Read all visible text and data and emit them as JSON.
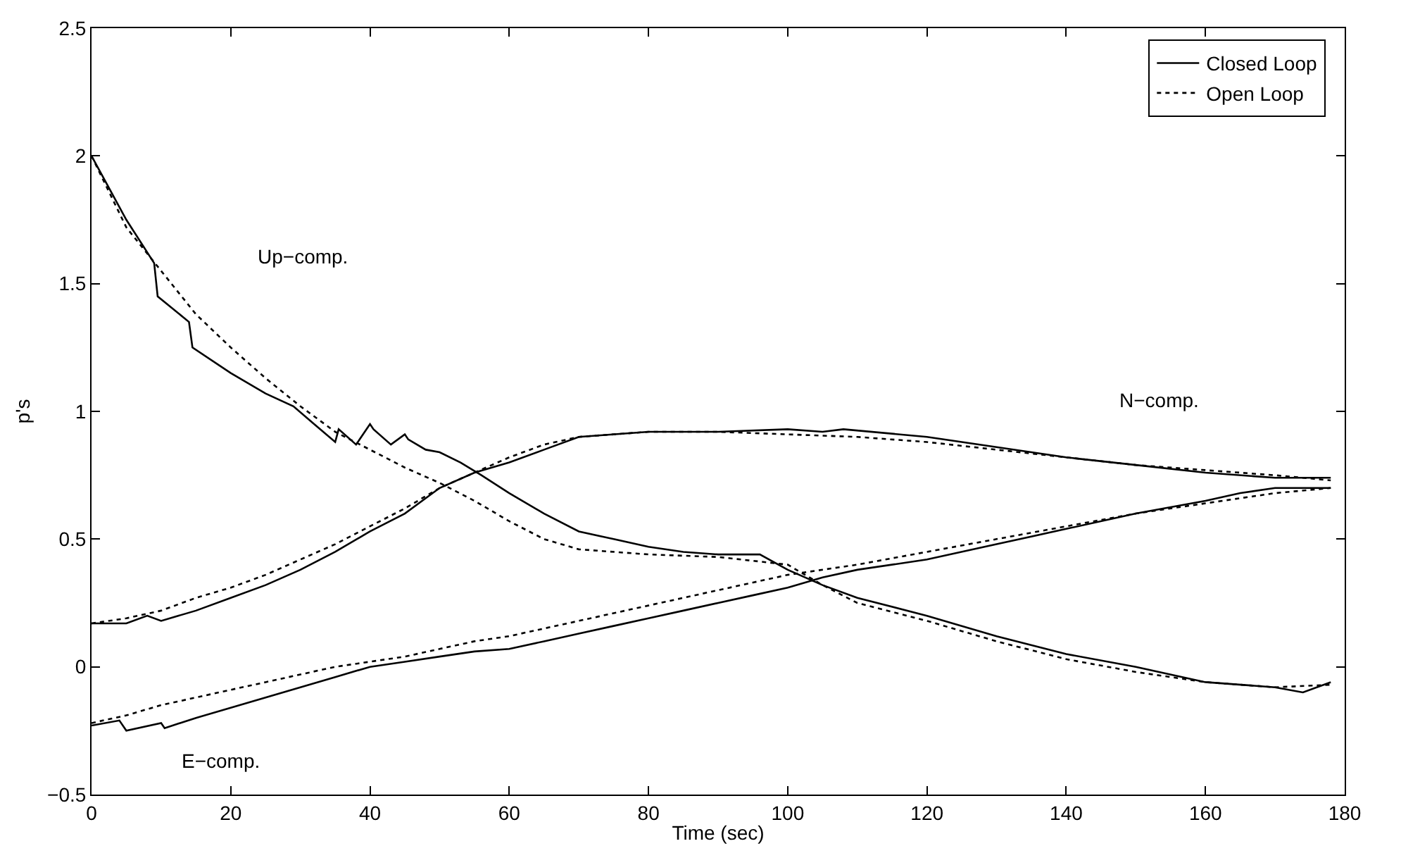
{
  "chart_data": {
    "type": "line",
    "xlabel": "Time (sec)",
    "ylabel": "p's",
    "xlim": [
      0,
      180
    ],
    "ylim": [
      -0.5,
      2.5
    ],
    "xticks": [
      0,
      20,
      40,
      60,
      80,
      100,
      120,
      140,
      160,
      180
    ],
    "yticks": [
      -0.5,
      0,
      0.5,
      1,
      1.5,
      2,
      2.5
    ],
    "legend": "top right",
    "marker": "none",
    "annotations": [
      "Up−comp.",
      "N−comp.",
      "E−comp."
    ],
    "series": [
      {
        "name": "Closed Loop",
        "color": "#000000",
        "line_style": "solid",
        "x": [
          0,
          5,
          9,
          9.5,
          14,
          14.5,
          20,
          25,
          29,
          32,
          35,
          35.5,
          38,
          40,
          40.5,
          43,
          45,
          45.5,
          48,
          50,
          53,
          56,
          60,
          65,
          70,
          75,
          80,
          85,
          90,
          96,
          100,
          105,
          110,
          120,
          130,
          140,
          150,
          160,
          170,
          174,
          178
        ],
        "values": [
          2.0,
          1.75,
          1.58,
          1.45,
          1.35,
          1.25,
          1.15,
          1.07,
          1.02,
          0.95,
          0.88,
          0.93,
          0.87,
          0.95,
          0.93,
          0.87,
          0.91,
          0.89,
          0.85,
          0.84,
          0.8,
          0.75,
          0.68,
          0.6,
          0.53,
          0.5,
          0.47,
          0.45,
          0.44,
          0.44,
          0.38,
          0.32,
          0.27,
          0.2,
          0.12,
          0.05,
          0,
          -0.06,
          -0.08,
          -0.1,
          -0.06
        ]
      },
      {
        "name": "Open Loop",
        "color": "#000000",
        "line_style": "dotted",
        "x": [
          0,
          5,
          10,
          15,
          20,
          25,
          30,
          35,
          40,
          45,
          50,
          55,
          60,
          65,
          70,
          80,
          90,
          100,
          105,
          110,
          120,
          130,
          140,
          150,
          160,
          170,
          178
        ],
        "values": [
          2.0,
          1.72,
          1.55,
          1.38,
          1.25,
          1.13,
          1.02,
          0.92,
          0.85,
          0.78,
          0.72,
          0.65,
          0.57,
          0.5,
          0.46,
          0.44,
          0.43,
          0.4,
          0.32,
          0.25,
          0.18,
          0.1,
          0.03,
          -0.02,
          -0.06,
          -0.08,
          -0.07
        ]
      },
      {
        "color": "#000000",
        "line_style": "solid",
        "x": [
          0,
          5,
          8,
          10,
          15,
          20,
          25,
          30,
          35,
          40,
          45,
          50,
          55,
          60,
          65,
          70,
          80,
          90,
          100,
          105,
          108,
          120,
          130,
          140,
          150,
          160,
          170,
          178
        ],
        "values": [
          0.17,
          0.17,
          0.2,
          0.18,
          0.22,
          0.27,
          0.32,
          0.38,
          0.45,
          0.53,
          0.6,
          0.7,
          0.76,
          0.8,
          0.85,
          0.9,
          0.92,
          0.92,
          0.93,
          0.92,
          0.93,
          0.9,
          0.86,
          0.82,
          0.79,
          0.76,
          0.74,
          0.74
        ]
      },
      {
        "color": "#000000",
        "line_style": "dotted",
        "x": [
          0,
          5,
          10,
          15,
          20,
          25,
          30,
          35,
          40,
          45,
          50,
          55,
          60,
          65,
          70,
          80,
          90,
          100,
          110,
          120,
          130,
          140,
          150,
          160,
          170,
          178
        ],
        "values": [
          0.17,
          0.19,
          0.22,
          0.27,
          0.31,
          0.36,
          0.42,
          0.48,
          0.55,
          0.62,
          0.7,
          0.76,
          0.82,
          0.87,
          0.9,
          0.92,
          0.92,
          0.91,
          0.9,
          0.88,
          0.85,
          0.82,
          0.79,
          0.77,
          0.75,
          0.73
        ]
      },
      {
        "color": "#000000",
        "line_style": "solid",
        "x": [
          0,
          4,
          5,
          10,
          10.5,
          15,
          20,
          25,
          30,
          35,
          40,
          45,
          50,
          55,
          60,
          65,
          70,
          75,
          80,
          85,
          90,
          95,
          100,
          105,
          110,
          120,
          130,
          140,
          150,
          160,
          165,
          170,
          178
        ],
        "values": [
          -0.23,
          -0.21,
          -0.25,
          -0.22,
          -0.24,
          -0.2,
          -0.16,
          -0.12,
          -0.08,
          -0.04,
          0,
          0.02,
          0.04,
          0.06,
          0.07,
          0.1,
          0.13,
          0.16,
          0.19,
          0.22,
          0.25,
          0.28,
          0.31,
          0.35,
          0.38,
          0.42,
          0.48,
          0.54,
          0.6,
          0.65,
          0.68,
          0.7,
          0.7
        ]
      },
      {
        "color": "#000000",
        "line_style": "dotted",
        "x": [
          0,
          5,
          10,
          15,
          20,
          25,
          30,
          35,
          40,
          45,
          50,
          55,
          60,
          65,
          70,
          75,
          80,
          85,
          90,
          95,
          100,
          110,
          120,
          130,
          140,
          150,
          160,
          170,
          178
        ],
        "values": [
          -0.22,
          -0.19,
          -0.15,
          -0.12,
          -0.09,
          -0.06,
          -0.03,
          0,
          0.02,
          0.04,
          0.07,
          0.1,
          0.12,
          0.15,
          0.18,
          0.21,
          0.24,
          0.27,
          0.3,
          0.33,
          0.36,
          0.4,
          0.45,
          0.5,
          0.55,
          0.6,
          0.64,
          0.68,
          0.7
        ]
      }
    ]
  }
}
